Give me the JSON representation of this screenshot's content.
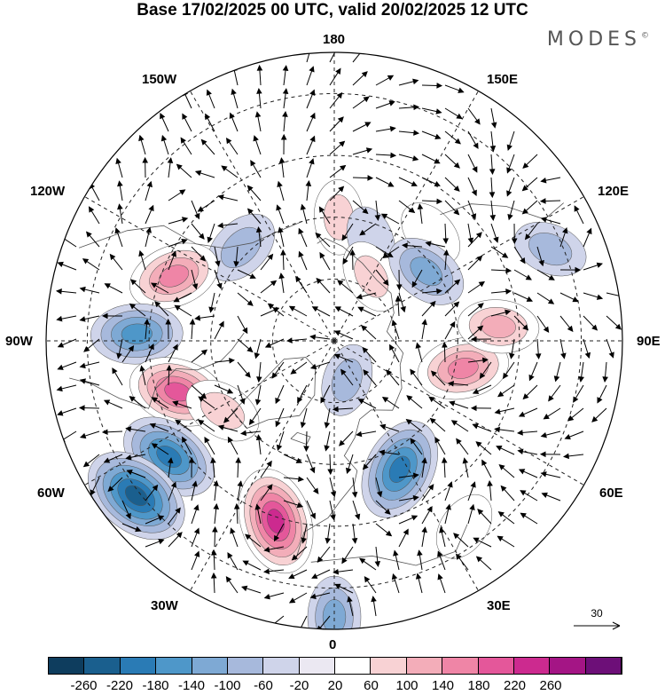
{
  "title": "Base 17/02/2025 00 UTC, valid 20/02/2025 12 UTC",
  "brand": "MODES",
  "brand_mark": "©",
  "longitude_labels": {
    "top": "180",
    "bottom": "0",
    "left": "90W",
    "right": "90E",
    "upper_left": "150W",
    "upper_right": "150E",
    "mid_upper_left": "120W",
    "mid_upper_right": "120E",
    "mid_lower_left": "60W",
    "mid_lower_right": "60E",
    "lower_left": "30W",
    "lower_right": "30E"
  },
  "reference_vector": {
    "value": "30"
  },
  "colorbar": {
    "colors": [
      "#0e3d5e",
      "#1a5f8e",
      "#2a7bb5",
      "#4e97c9",
      "#7ea9d4",
      "#a7b9dc",
      "#cfd4ea",
      "#ebe8f2",
      "#ffffff",
      "#f8d2d4",
      "#f3adb9",
      "#ef85a6",
      "#e4579a",
      "#cc2a8f",
      "#a41585",
      "#6d0f78"
    ],
    "ticks": [
      "-260",
      "-220",
      "-180",
      "-140",
      "-100",
      "-60",
      "-20",
      "20",
      "60",
      "100",
      "140",
      "180",
      "220",
      "260"
    ]
  },
  "anomaly_centers": [
    {
      "lon": -135,
      "lat": 58,
      "value": -90
    },
    {
      "lon": 178,
      "lat": 60,
      "value": 70
    },
    {
      "lon": 160,
      "lat": 64,
      "value": -40
    },
    {
      "lon": 138,
      "lat": 55,
      "value": 50
    },
    {
      "lon": 150,
      "lat": 72,
      "value": 70
    },
    {
      "lon": -112,
      "lat": 48,
      "value": 150
    },
    {
      "lon": -92,
      "lat": 42,
      "value": -150
    },
    {
      "lon": -72,
      "lat": 50,
      "value": 180
    },
    {
      "lon": -55,
      "lat": 41,
      "value": -190
    },
    {
      "lon": -58,
      "lat": 58,
      "value": 90
    },
    {
      "lon": -18,
      "lat": 44,
      "value": 220
    },
    {
      "lon": -52,
      "lat": 29,
      "value": -230
    },
    {
      "lon": 0,
      "lat": 23,
      "value": -100
    },
    {
      "lon": 27,
      "lat": 55,
      "value": -200
    },
    {
      "lon": 18,
      "lat": 80,
      "value": -60
    },
    {
      "lon": 78,
      "lat": 58,
      "value": 150
    },
    {
      "lon": 95,
      "lat": 50,
      "value": 100
    },
    {
      "lon": 113,
      "lat": 33,
      "value": -70
    },
    {
      "lon": 127,
      "lat": 62,
      "value": -110
    },
    {
      "lon": 35,
      "lat": 35,
      "value": 50
    }
  ]
}
